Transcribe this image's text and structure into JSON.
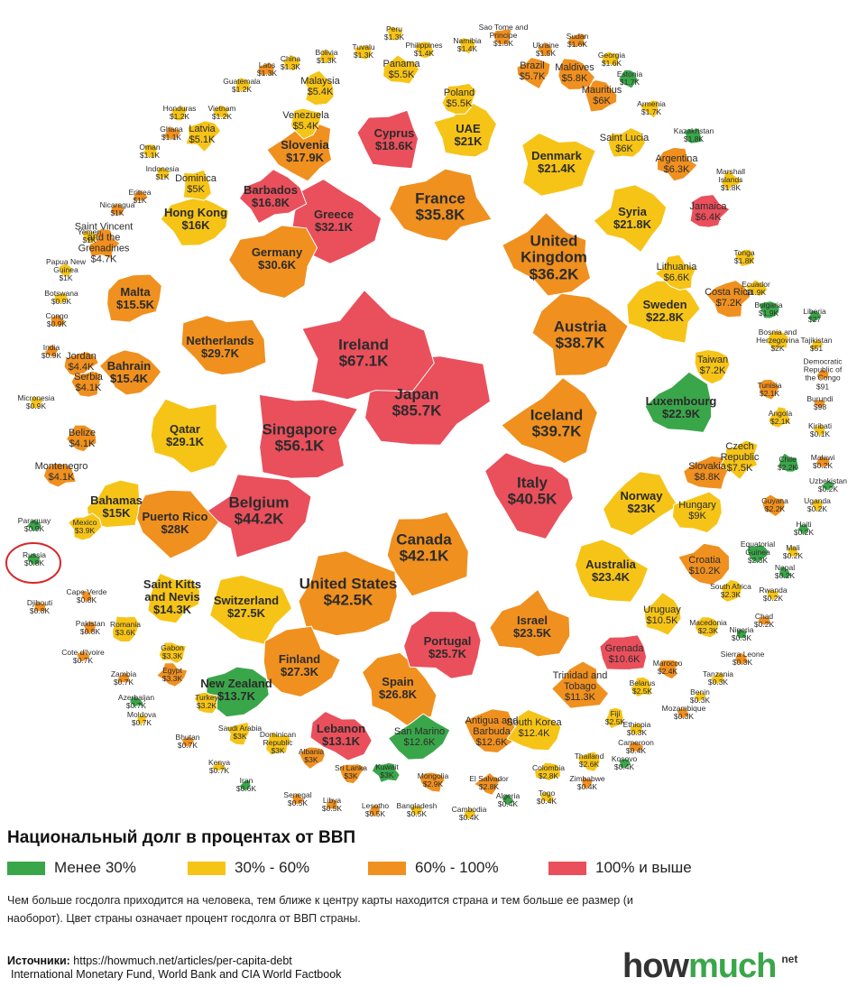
{
  "countries": [
    {
      "name": "Japan",
      "debt": "$85.7K",
      "color": "#ea4f5c"
    },
    {
      "name": "Ireland",
      "debt": "$67.1K",
      "color": "#ea4f5c"
    },
    {
      "name": "Singapore",
      "debt": "$56.1K",
      "color": "#ea4f5c"
    },
    {
      "name": "Belgium",
      "debt": "$44.2K",
      "color": "#ea4f5c"
    },
    {
      "name": "Italy",
      "debt": "$40.5K",
      "color": "#ea4f5c"
    },
    {
      "name": "Canada",
      "debt": "$42.1K",
      "color": "#f0901f"
    },
    {
      "name": "United States",
      "debt": "$42.5K",
      "color": "#f0901f"
    },
    {
      "name": "Iceland",
      "debt": "$39.7K",
      "color": "#f0901f"
    },
    {
      "name": "Austria",
      "debt": "$38.7K",
      "color": "#f0901f"
    },
    {
      "name": "United Kingdom",
      "debt": "$36.2K",
      "color": "#f0901f"
    },
    {
      "name": "France",
      "debt": "$35.8K",
      "color": "#f0901f"
    },
    {
      "name": "Greece",
      "debt": "$32.1K",
      "color": "#ea4f5c"
    },
    {
      "name": "Germany",
      "debt": "$30.6K",
      "color": "#f0901f"
    },
    {
      "name": "Netherlands",
      "debt": "$29.7K",
      "color": "#f0901f"
    },
    {
      "name": "Qatar",
      "debt": "$29.1K",
      "color": "#f6c417"
    },
    {
      "name": "Puerto Rico",
      "debt": "$28K",
      "color": "#f0901f"
    },
    {
      "name": "Switzerland",
      "debt": "$27.5K",
      "color": "#f6c417"
    },
    {
      "name": "Finland",
      "debt": "$27.3K",
      "color": "#f0901f"
    },
    {
      "name": "Spain",
      "debt": "$26.8K",
      "color": "#f0901f"
    },
    {
      "name": "Portugal",
      "debt": "$25.7K",
      "color": "#ea4f5c"
    },
    {
      "name": "Israel",
      "debt": "$23.5K",
      "color": "#f0901f"
    },
    {
      "name": "Australia",
      "debt": "$23.4K",
      "color": "#f6c417"
    },
    {
      "name": "Norway",
      "debt": "$23K",
      "color": "#f6c417"
    },
    {
      "name": "Luxembourg",
      "debt": "$22.9K",
      "color": "#3aa64a"
    },
    {
      "name": "Sweden",
      "debt": "$22.8K",
      "color": "#f6c417"
    },
    {
      "name": "Syria",
      "debt": "$21.8K",
      "color": "#f6c417"
    },
    {
      "name": "Denmark",
      "debt": "$21.4K",
      "color": "#f6c417"
    },
    {
      "name": "UAE",
      "debt": "$21K",
      "color": "#f6c417"
    },
    {
      "name": "Cyprus",
      "debt": "$18.6K",
      "color": "#ea4f5c"
    },
    {
      "name": "Slovenia",
      "debt": "$17.9K",
      "color": "#f0901f"
    },
    {
      "name": "Barbados",
      "debt": "$16.8K",
      "color": "#ea4f5c"
    },
    {
      "name": "Hong Kong",
      "debt": "$16K",
      "color": "#f6c417"
    },
    {
      "name": "Malta",
      "debt": "$15.5K",
      "color": "#f0901f"
    },
    {
      "name": "Bahrain",
      "debt": "$15.4K",
      "color": "#f0901f"
    },
    {
      "name": "Bahamas",
      "debt": "$15K",
      "color": "#f6c417"
    },
    {
      "name": "Saint Kitts and Nevis",
      "debt": "$14.3K",
      "color": "#f6c417"
    },
    {
      "name": "New Zealand",
      "debt": "$13.7K",
      "color": "#3aa64a"
    },
    {
      "name": "Lebanon",
      "debt": "$13.1K",
      "color": "#ea4f5c"
    },
    {
      "name": "San Marino",
      "debt": "$12.6K",
      "color": "#3aa64a"
    },
    {
      "name": "Antigua and Barbuda",
      "debt": "$12.6K",
      "color": "#f0901f"
    },
    {
      "name": "South Korea",
      "debt": "$12.4K",
      "color": "#f6c417"
    },
    {
      "name": "Trinidad and Tobago",
      "debt": "$11.3K",
      "color": "#f0901f"
    },
    {
      "name": "Grenada",
      "debt": "$10.6K",
      "color": "#ea4f5c"
    },
    {
      "name": "Uruguay",
      "debt": "$10.5K",
      "color": "#f6c417"
    },
    {
      "name": "Croatia",
      "debt": "$10.2K",
      "color": "#f0901f"
    },
    {
      "name": "Hungary",
      "debt": "$9K",
      "color": "#f6c417"
    },
    {
      "name": "Slovakia",
      "debt": "$8.8K",
      "color": "#f0901f"
    },
    {
      "name": "Czech Republic",
      "debt": "$7.5K",
      "color": "#f6c417"
    },
    {
      "name": "Taiwan",
      "debt": "$7.2K",
      "color": "#f6c417"
    },
    {
      "name": "Costa Rica",
      "debt": "$7.2K",
      "color": "#f0901f"
    },
    {
      "name": "Lithuania",
      "debt": "$6.6K",
      "color": "#f6c417"
    },
    {
      "name": "Jamaica",
      "debt": "$6.4K",
      "color": "#ea4f5c"
    },
    {
      "name": "Argentina",
      "debt": "$6.3K",
      "color": "#f0901f"
    },
    {
      "name": "Saint Lucia",
      "debt": "$6K",
      "color": "#f6c417"
    },
    {
      "name": "Mauritius",
      "debt": "$6K",
      "color": "#f0901f"
    },
    {
      "name": "Maldives",
      "debt": "$5.8K",
      "color": "#f0901f"
    },
    {
      "name": "Brazil",
      "debt": "$5.7K",
      "color": "#f0901f"
    },
    {
      "name": "Poland",
      "debt": "$5.5K",
      "color": "#f6c417"
    },
    {
      "name": "Panama",
      "debt": "$5.5K",
      "color": "#f6c417"
    },
    {
      "name": "Malaysia",
      "debt": "$5.4K",
      "color": "#f6c417"
    },
    {
      "name": "Venezuela",
      "debt": "$5.4K",
      "color": "#f6c417"
    },
    {
      "name": "Latvia",
      "debt": "$5.1K",
      "color": "#f6c417"
    },
    {
      "name": "Dominica",
      "debt": "$5K",
      "color": "#f6c417"
    },
    {
      "name": "Saint Vincent and the Grenadines",
      "debt": "$4.7K",
      "color": "#f0901f"
    },
    {
      "name": "Jordan",
      "debt": "$4.4K",
      "color": "#f0901f"
    },
    {
      "name": "Serbia",
      "debt": "$4.1K",
      "color": "#f0901f"
    },
    {
      "name": "Belize",
      "debt": "$4.1K",
      "color": "#f0901f"
    },
    {
      "name": "Montenegro",
      "debt": "$4.1K",
      "color": "#f0901f"
    },
    {
      "name": "Mexico",
      "debt": "$3.9K",
      "color": "#f6c417"
    },
    {
      "name": "Romania",
      "debt": "$3.6K",
      "color": "#f6c417"
    },
    {
      "name": "Gabon",
      "debt": "$3.3K",
      "color": "#f6c417"
    },
    {
      "name": "Egypt",
      "debt": "$3.3K",
      "color": "#f0901f"
    },
    {
      "name": "Turkey",
      "debt": "$3.2K",
      "color": "#f6c417"
    },
    {
      "name": "Saudi Arabia",
      "debt": "$3K",
      "color": "#f6c417"
    },
    {
      "name": "Dominican Republic",
      "debt": "$3K",
      "color": "#f6c417"
    },
    {
      "name": "Albania",
      "debt": "$3K",
      "color": "#f0901f"
    },
    {
      "name": "Sri Lanka",
      "debt": "$3K",
      "color": "#f0901f"
    },
    {
      "name": "Kuwait",
      "debt": "$3K",
      "color": "#3aa64a"
    },
    {
      "name": "Mongolia",
      "debt": "$2.9K",
      "color": "#f0901f"
    },
    {
      "name": "El Salvador",
      "debt": "$2.8K",
      "color": "#f0901f"
    },
    {
      "name": "Colombia",
      "debt": "$2.8K",
      "color": "#f6c417"
    },
    {
      "name": "Thailand",
      "debt": "$2.6K",
      "color": "#f6c417"
    },
    {
      "name": "Fiji",
      "debt": "$2.5K",
      "color": "#f6c417"
    },
    {
      "name": "Belarus",
      "debt": "$2.5K",
      "color": "#f6c417"
    },
    {
      "name": "Marocco",
      "debt": "$2.4K",
      "color": "#f0901f"
    },
    {
      "name": "Macedonia",
      "debt": "$2.3K",
      "color": "#f6c417"
    },
    {
      "name": "South Africa",
      "debt": "$2.3K",
      "color": "#f6c417"
    },
    {
      "name": "Equatorial Guinea",
      "debt": "$2.3K",
      "color": "#3aa64a"
    },
    {
      "name": "Guyana",
      "debt": "$2.2K",
      "color": "#f0901f"
    },
    {
      "name": "Chile",
      "debt": "$2.2K",
      "color": "#3aa64a"
    },
    {
      "name": "Angola",
      "debt": "$2.1K",
      "color": "#f6c417"
    },
    {
      "name": "Tunisia",
      "debt": "$2.1K",
      "color": "#f0901f"
    },
    {
      "name": "Bosnia and Herzegovina",
      "debt": "$2K",
      "color": "#f6c417"
    },
    {
      "name": "Bulgaria",
      "debt": "$1.9K",
      "color": "#3aa64a"
    },
    {
      "name": "Ecuador",
      "debt": "$1.9K",
      "color": "#f6c417"
    },
    {
      "name": "Tonga",
      "debt": "$1.8K",
      "color": "#f6c417"
    },
    {
      "name": "Marshall Islands",
      "debt": "$1.8K",
      "color": "#f6c417"
    },
    {
      "name": "Kazakhstan",
      "debt": "$1.8K",
      "color": "#3aa64a"
    },
    {
      "name": "Armenia",
      "debt": "$1.7K",
      "color": "#f6c417"
    },
    {
      "name": "Estonia",
      "debt": "$1.7K",
      "color": "#3aa64a"
    },
    {
      "name": "Georgia",
      "debt": "$1.6K",
      "color": "#f6c417"
    },
    {
      "name": "Sudan",
      "debt": "$1.6K",
      "color": "#f0901f"
    },
    {
      "name": "Ukraine",
      "debt": "$1.5K",
      "color": "#f0901f"
    },
    {
      "name": "Sao Tome and Principe",
      "debt": "$1.5K",
      "color": "#f0901f"
    },
    {
      "name": "Namibia",
      "debt": "$1.4K",
      "color": "#f6c417"
    },
    {
      "name": "Philippines",
      "debt": "$1.4K",
      "color": "#f6c417"
    },
    {
      "name": "Peru",
      "debt": "$1.3K",
      "color": "#f6c417"
    },
    {
      "name": "Tuvalu",
      "debt": "$1.3K",
      "color": "#f6c417"
    },
    {
      "name": "Bolivia",
      "debt": "$1.3K",
      "color": "#f6c417"
    },
    {
      "name": "China",
      "debt": "$1.3K",
      "color": "#f6c417"
    },
    {
      "name": "Laos",
      "debt": "$1.3K",
      "color": "#f0901f"
    },
    {
      "name": "Guatemala",
      "debt": "$1.2K",
      "color": "#f6c417"
    },
    {
      "name": "Honduras",
      "debt": "$1.2K",
      "color": "#f6c417"
    },
    {
      "name": "Vietnam",
      "debt": "$1.2K",
      "color": "#f6c417"
    },
    {
      "name": "Ghana",
      "debt": "$1.1K",
      "color": "#f0901f"
    },
    {
      "name": "Oman",
      "debt": "$1.1K",
      "color": "#f6c417"
    },
    {
      "name": "Indonesia",
      "debt": "$1K",
      "color": "#f6c417"
    },
    {
      "name": "Eritrea",
      "debt": "$1K",
      "color": "#f0901f"
    },
    {
      "name": "Nicaragua",
      "debt": "$1K",
      "color": "#f0901f"
    },
    {
      "name": "Yemen",
      "debt": "$1K",
      "color": "#f6c417"
    },
    {
      "name": "Papua New Guinea",
      "debt": "$1K",
      "color": "#f6c417"
    },
    {
      "name": "Botswana",
      "debt": "$0.9K",
      "color": "#f6c417"
    },
    {
      "name": "Congo",
      "debt": "$0.9K",
      "color": "#f0901f"
    },
    {
      "name": "India",
      "debt": "$0.9K",
      "color": "#f0901f"
    },
    {
      "name": "Micronesia",
      "debt": "$0.9K",
      "color": "#f6c417"
    },
    {
      "name": "Paraguay",
      "debt": "$0.9K",
      "color": "#3aa64a"
    },
    {
      "name": "Russia",
      "debt": "$0.8K",
      "color": "#3aa64a"
    },
    {
      "name": "Cape Verde",
      "debt": "$0.8K",
      "color": "#f0901f"
    },
    {
      "name": "Djibouti",
      "debt": "$0.8K",
      "color": "#f0901f"
    },
    {
      "name": "Pakistan",
      "debt": "$0.8K",
      "color": "#f0901f"
    },
    {
      "name": "Cote d'Ivoire",
      "debt": "$0.7K",
      "color": "#f0901f"
    },
    {
      "name": "Zambia",
      "debt": "$0.7K",
      "color": "#f0901f"
    },
    {
      "name": "Azerbaijan",
      "debt": "$0.7K",
      "color": "#3aa64a"
    },
    {
      "name": "Moldova",
      "debt": "$0.7K",
      "color": "#f6c417"
    },
    {
      "name": "Bhutan",
      "debt": "$0.7K",
      "color": "#f0901f"
    },
    {
      "name": "Kenya",
      "debt": "$0.7K",
      "color": "#f6c417"
    },
    {
      "name": "Iran",
      "debt": "$0.6K",
      "color": "#3aa64a"
    },
    {
      "name": "Senegal",
      "debt": "$0.5K",
      "color": "#f0901f"
    },
    {
      "name": "Libya",
      "debt": "$0.5K",
      "color": "#f0901f"
    },
    {
      "name": "Lesotho",
      "debt": "$0.5K",
      "color": "#f0901f"
    },
    {
      "name": "Bangladesh",
      "debt": "$0.5K",
      "color": "#f6c417"
    },
    {
      "name": "Cambodia",
      "debt": "$0.4K",
      "color": "#f6c417"
    },
    {
      "name": "Algeria",
      "debt": "$0.4K",
      "color": "#3aa64a"
    },
    {
      "name": "Togo",
      "debt": "$0.4K",
      "color": "#f6c417"
    },
    {
      "name": "Zimbabwe",
      "debt": "$0.4K",
      "color": "#f0901f"
    },
    {
      "name": "Kosovo",
      "debt": "$0.4K",
      "color": "#3aa64a"
    },
    {
      "name": "Cameroon",
      "debt": "$0.4K",
      "color": "#f0901f"
    },
    {
      "name": "Ethiopia",
      "debt": "$0.3K",
      "color": "#f6c417"
    },
    {
      "name": "Mozambique",
      "debt": "$0.3K",
      "color": "#f0901f"
    },
    {
      "name": "Benin",
      "debt": "$0.3K",
      "color": "#f6c417"
    },
    {
      "name": "Tanzania",
      "debt": "$0.3K",
      "color": "#f6c417"
    },
    {
      "name": "Sierra Leone",
      "debt": "$0.3K",
      "color": "#f0901f"
    },
    {
      "name": "Nigeria",
      "debt": "$0.3K",
      "color": "#3aa64a"
    },
    {
      "name": "Chad",
      "debt": "$0.2K",
      "color": "#f0901f"
    },
    {
      "name": "Rwanda",
      "debt": "$0.2K",
      "color": "#f6c417"
    },
    {
      "name": "Nepal",
      "debt": "$0.2K",
      "color": "#3aa64a"
    },
    {
      "name": "Mali",
      "debt": "$0.2K",
      "color": "#f6c417"
    },
    {
      "name": "Haiti",
      "debt": "$0.2K",
      "color": "#3aa64a"
    },
    {
      "name": "Uganda",
      "debt": "$0.2K",
      "color": "#f6c417"
    },
    {
      "name": "Uzbekistan",
      "debt": "$0.2K",
      "color": "#3aa64a"
    },
    {
      "name": "Malawi",
      "debt": "$0.2K",
      "color": "#f0901f"
    },
    {
      "name": "Kiribati",
      "debt": "$0.1K",
      "color": "#f6c417"
    },
    {
      "name": "Burundi",
      "debt": "$98",
      "color": "#f0901f"
    },
    {
      "name": "Democratic Republic of the Congo",
      "debt": "$91",
      "color": "#f0901f"
    },
    {
      "name": "Tajikistan",
      "debt": "$51",
      "color": "#f6c417"
    },
    {
      "name": "Liberia",
      "debt": "$27",
      "color": "#3aa64a"
    }
  ],
  "title": "Национальный долг в процентах от ВВП",
  "legend": [
    {
      "label": "Менее 30%",
      "color": "#3aa64a"
    },
    {
      "label": "30% - 60%",
      "color": "#f6c417"
    },
    {
      "label": "60% - 100%",
      "color": "#f0901f"
    },
    {
      "label": "100% и выше",
      "color": "#ea4f5c"
    }
  ],
  "note": "Чем больше госдолга приходится на человека, тем ближе к центру карты находится страна и тем больше ее размер (и наоборот). Цвет страны означает процент госдолга от ВВП страны.",
  "sources": {
    "label": "Источники:",
    "url": "https://howmuch.net/articles/per-capita-debt",
    "list": "International Monetary Fund, World Bank and CIA World Factbook"
  },
  "logo": {
    "part1": "how",
    "part2": "much",
    "suffix": "net"
  }
}
